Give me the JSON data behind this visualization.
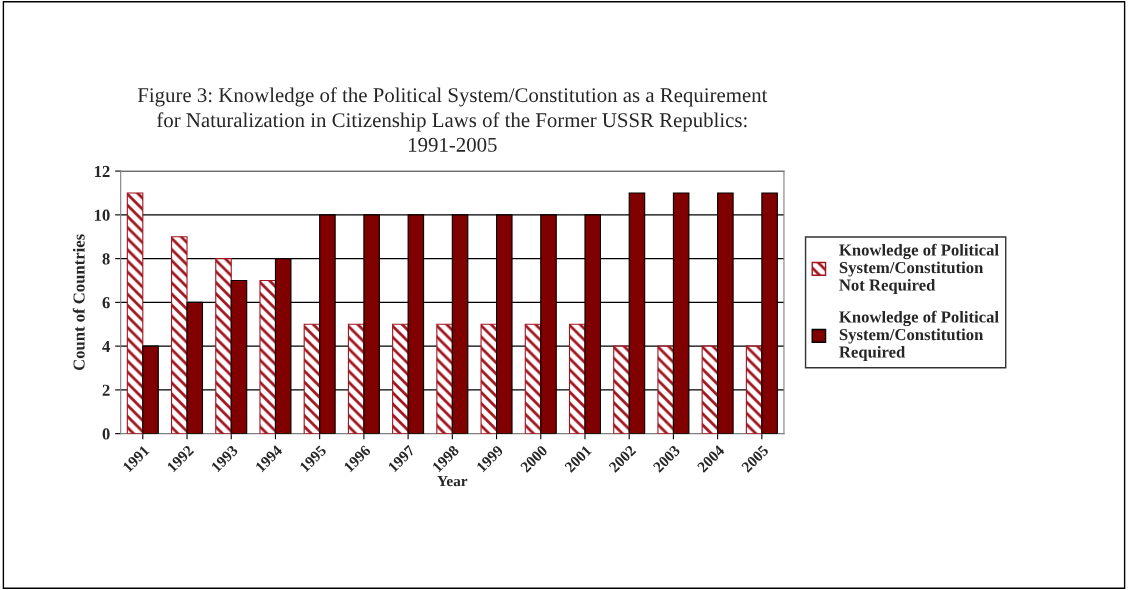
{
  "chart_data": {
    "type": "bar",
    "title": "Figure 3: Knowledge of the Political System/Constitution as a Requirement\nfor Naturalization in Citizenship Laws of the Former USSR Republics:\n1991-2005",
    "xlabel": "Year",
    "ylabel": "Count of Countries",
    "categories": [
      "1991",
      "1992",
      "1993",
      "1994",
      "1995",
      "1996",
      "1997",
      "1998",
      "1999",
      "2000",
      "2001",
      "2002",
      "2003",
      "2004",
      "2005"
    ],
    "series": [
      {
        "name": "Knowledge of Political System/Constitution Not Required",
        "color": "#a0141e",
        "values": [
          11,
          9,
          8,
          7,
          5,
          5,
          5,
          5,
          5,
          5,
          5,
          4,
          4,
          4,
          4
        ]
      },
      {
        "name": "Knowledge of Political System/Constitution Required",
        "color": "#800000",
        "values": [
          4,
          6,
          7,
          8,
          10,
          10,
          10,
          10,
          10,
          10,
          10,
          11,
          11,
          11,
          11
        ]
      }
    ],
    "ylim": [
      0,
      12
    ],
    "yticks": [
      0,
      2,
      4,
      6,
      8,
      10,
      12
    ],
    "grid": "y",
    "legend": "right"
  }
}
